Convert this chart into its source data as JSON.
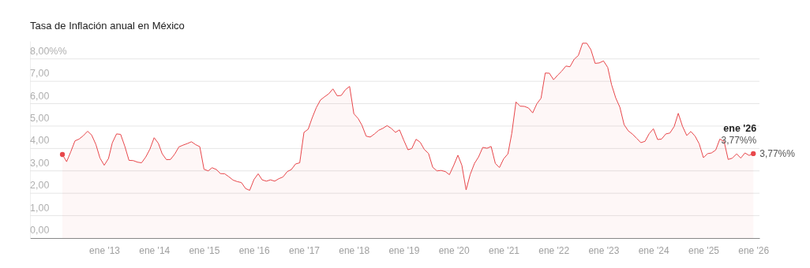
{
  "chart_data": {
    "type": "area",
    "title": "Tasa de Inflación anual en México",
    "x": [
      "2012-03",
      "2012-04",
      "2012-05",
      "2012-06",
      "2012-07",
      "2012-08",
      "2012-09",
      "2012-10",
      "2012-11",
      "2012-12",
      "2013-01",
      "2013-02",
      "2013-03",
      "2013-04",
      "2013-05",
      "2013-06",
      "2013-07",
      "2013-08",
      "2013-09",
      "2013-10",
      "2013-11",
      "2013-12",
      "2014-01",
      "2014-02",
      "2014-03",
      "2014-04",
      "2014-05",
      "2014-06",
      "2014-07",
      "2014-08",
      "2014-09",
      "2014-10",
      "2014-11",
      "2014-12",
      "2015-01",
      "2015-02",
      "2015-03",
      "2015-04",
      "2015-05",
      "2015-06",
      "2015-07",
      "2015-08",
      "2015-09",
      "2015-10",
      "2015-11",
      "2015-12",
      "2016-01",
      "2016-02",
      "2016-03",
      "2016-04",
      "2016-05",
      "2016-06",
      "2016-07",
      "2016-08",
      "2016-09",
      "2016-10",
      "2016-11",
      "2016-12",
      "2017-01",
      "2017-02",
      "2017-03",
      "2017-04",
      "2017-05",
      "2017-06",
      "2017-07",
      "2017-08",
      "2017-09",
      "2017-10",
      "2017-11",
      "2017-12",
      "2018-01",
      "2018-02",
      "2018-03",
      "2018-04",
      "2018-05",
      "2018-06",
      "2018-07",
      "2018-08",
      "2018-09",
      "2018-10",
      "2018-11",
      "2018-12",
      "2019-01",
      "2019-02",
      "2019-03",
      "2019-04",
      "2019-05",
      "2019-06",
      "2019-07",
      "2019-08",
      "2019-09",
      "2019-10",
      "2019-11",
      "2019-12",
      "2020-01",
      "2020-02",
      "2020-03",
      "2020-04",
      "2020-05",
      "2020-06",
      "2020-07",
      "2020-08",
      "2020-09",
      "2020-10",
      "2020-11",
      "2020-12",
      "2021-01",
      "2021-02",
      "2021-03",
      "2021-04",
      "2021-05",
      "2021-06",
      "2021-07",
      "2021-08",
      "2021-09",
      "2021-10",
      "2021-11",
      "2021-12",
      "2022-01",
      "2022-02",
      "2022-03",
      "2022-04",
      "2022-05",
      "2022-06",
      "2022-07",
      "2022-08",
      "2022-09",
      "2022-10",
      "2022-11",
      "2022-12",
      "2023-01",
      "2023-02",
      "2023-03",
      "2023-04",
      "2023-05",
      "2023-06",
      "2023-07",
      "2023-08",
      "2023-09",
      "2023-10",
      "2023-11",
      "2023-12",
      "2024-01",
      "2024-02",
      "2024-03",
      "2024-04",
      "2024-05",
      "2024-06",
      "2024-07",
      "2024-08",
      "2024-09",
      "2024-10",
      "2024-11",
      "2024-12",
      "2025-01",
      "2025-02",
      "2025-03",
      "2025-04",
      "2025-05",
      "2025-06",
      "2025-07",
      "2025-08",
      "2025-09",
      "2025-10",
      "2025-11",
      "2025-12",
      "2026-01"
    ],
    "series": [
      {
        "color": "#e8474b",
        "values": [
          3.73,
          3.41,
          3.85,
          4.34,
          4.42,
          4.57,
          4.77,
          4.6,
          4.18,
          3.57,
          3.25,
          3.55,
          4.25,
          4.65,
          4.63,
          4.09,
          3.47,
          3.46,
          3.39,
          3.36,
          3.62,
          3.97,
          4.48,
          4.23,
          3.76,
          3.5,
          3.51,
          3.75,
          4.07,
          4.15,
          4.22,
          4.3,
          4.17,
          4.08,
          3.07,
          3.0,
          3.14,
          3.06,
          2.88,
          2.87,
          2.74,
          2.59,
          2.52,
          2.48,
          2.21,
          2.13,
          2.61,
          2.87,
          2.6,
          2.54,
          2.6,
          2.54,
          2.65,
          2.73,
          2.97,
          3.06,
          3.31,
          3.36,
          4.72,
          4.86,
          5.35,
          5.82,
          6.16,
          6.31,
          6.44,
          6.66,
          6.35,
          6.37,
          6.63,
          6.77,
          5.55,
          5.34,
          5.04,
          4.55,
          4.51,
          4.65,
          4.81,
          4.9,
          5.02,
          4.9,
          4.72,
          4.83,
          4.37,
          3.94,
          4.0,
          4.41,
          4.28,
          3.95,
          3.78,
          3.16,
          3.0,
          3.02,
          2.97,
          2.83,
          3.24,
          3.7,
          3.25,
          2.15,
          2.84,
          3.33,
          3.62,
          4.05,
          4.01,
          4.09,
          3.33,
          3.15,
          3.54,
          3.76,
          4.67,
          6.08,
          5.89,
          5.88,
          5.81,
          5.59,
          6.0,
          6.24,
          7.37,
          7.36,
          7.07,
          7.28,
          7.45,
          7.68,
          7.65,
          7.99,
          8.15,
          8.7,
          8.7,
          8.41,
          7.8,
          7.82,
          7.91,
          7.62,
          6.85,
          6.25,
          5.84,
          5.06,
          4.79,
          4.64,
          4.45,
          4.26,
          4.32,
          4.66,
          4.88,
          4.4,
          4.42,
          4.65,
          4.69,
          4.98,
          5.57,
          4.99,
          4.58,
          4.76,
          4.55,
          4.21,
          3.59,
          3.77,
          3.8,
          3.93,
          4.42,
          4.32,
          3.51,
          3.57,
          3.76,
          3.57,
          3.8,
          3.69,
          3.77
        ]
      }
    ],
    "xlim": [
      "2011-07-08",
      "2026-02-15"
    ],
    "xticks": [
      {
        "value": "2013-01",
        "label": "ene '13"
      },
      {
        "value": "2014-01",
        "label": "ene '14"
      },
      {
        "value": "2015-01",
        "label": "ene '15"
      },
      {
        "value": "2016-01",
        "label": "ene '16"
      },
      {
        "value": "2017-01",
        "label": "ene '17"
      },
      {
        "value": "2018-01",
        "label": "ene '18"
      },
      {
        "value": "2019-01",
        "label": "ene '19"
      },
      {
        "value": "2020-01",
        "label": "ene '20"
      },
      {
        "value": "2021-01",
        "label": "ene '21"
      },
      {
        "value": "2022-01",
        "label": "ene '22"
      },
      {
        "value": "2023-01",
        "label": "ene '23"
      },
      {
        "value": "2024-01",
        "label": "ene '24"
      },
      {
        "value": "2025-01",
        "label": "ene '25"
      },
      {
        "value": "2026-01",
        "label": "ene '26"
      }
    ],
    "ylim": [
      0,
      8.8
    ],
    "yticks": [
      {
        "value": 0,
        "label": "0,00"
      },
      {
        "value": 1,
        "label": "1,00"
      },
      {
        "value": 2,
        "label": "2,00"
      },
      {
        "value": 3,
        "label": "3,00"
      },
      {
        "value": 4,
        "label": "4,00"
      },
      {
        "value": 5,
        "label": "5,00"
      },
      {
        "value": 6,
        "label": "6,00"
      },
      {
        "value": 7,
        "label": "7,00"
      },
      {
        "value": 8,
        "label": "8,00%%"
      }
    ],
    "grid": "y",
    "annotations": [
      {
        "text": "ene '26",
        "x": "2026-01",
        "y": 3.77
      },
      {
        "text": "3,77%%",
        "x": "2026-01",
        "y": 3.77
      },
      {
        "text": "3,77%%",
        "x": "2026-01",
        "y": 3.77
      }
    ]
  }
}
